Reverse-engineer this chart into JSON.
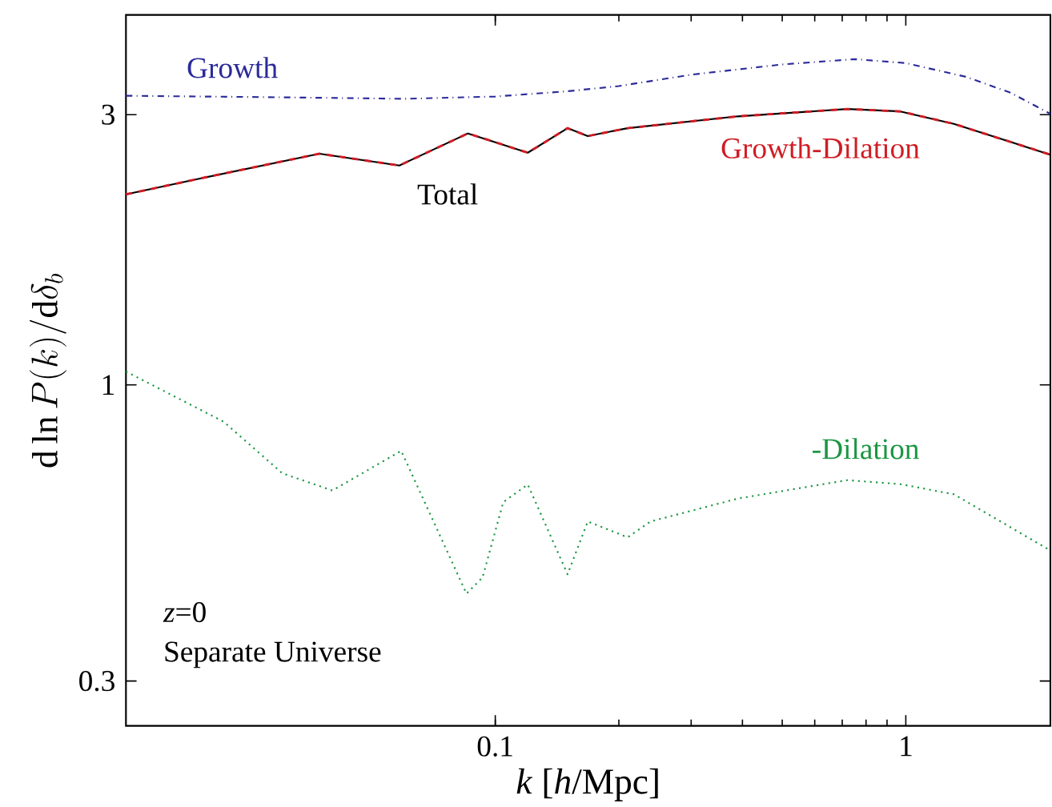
{
  "chart_data": {
    "type": "line",
    "xlabel": "*k* [*h*/Mpc]",
    "ylabel": "\\mathrm{d}\\ln P(k)/\\mathrm{d}\\delta_b",
    "log": "xy",
    "xlim": [
      0.0126,
      2.25
    ],
    "ylim": [
      0.25,
      4.5
    ],
    "xticks": [
      0.1,
      1
    ],
    "yticks": [
      0.3,
      1,
      3
    ],
    "series": [
      {
        "name": "Growth",
        "color": "#2b2b9a",
        "line_style": "dashdot",
        "x": [
          0.0126,
          0.03,
          0.06,
          0.1,
          0.15,
          0.2,
          0.3,
          0.5,
          0.75,
          1.0,
          1.4,
          1.8,
          2.25
        ],
        "values": [
          3.24,
          3.22,
          3.2,
          3.23,
          3.3,
          3.37,
          3.53,
          3.68,
          3.76,
          3.7,
          3.5,
          3.28,
          3.01
        ]
      },
      {
        "name": "Total",
        "color": "#000000",
        "line_style": "solid",
        "x": [
          0.0126,
          0.0194,
          0.0373,
          0.0584,
          0.0858,
          0.12,
          0.15,
          0.168,
          0.21,
          0.39,
          0.72,
          0.97,
          1.31,
          2.25
        ],
        "values": [
          2.17,
          2.32,
          2.56,
          2.44,
          2.78,
          2.57,
          2.84,
          2.75,
          2.84,
          2.98,
          3.07,
          3.04,
          2.89,
          2.55
        ]
      },
      {
        "name": "Growth-Dilation",
        "color": "#d01c24",
        "line_style": "dashed",
        "x": [
          0.0126,
          0.0194,
          0.0373,
          0.0584,
          0.0858,
          0.12,
          0.15,
          0.168,
          0.21,
          0.39,
          0.72,
          0.97,
          1.31,
          2.25
        ],
        "values": [
          2.17,
          2.32,
          2.56,
          2.44,
          2.78,
          2.57,
          2.84,
          2.75,
          2.84,
          2.98,
          3.07,
          3.04,
          2.89,
          2.55
        ]
      },
      {
        "name": "-Dilation",
        "color": "#1a9641",
        "line_style": "dotted",
        "x": [
          0.0126,
          0.0218,
          0.0303,
          0.0401,
          0.059,
          0.0851,
          0.0931,
          0.1046,
          0.12,
          0.15,
          0.168,
          0.21,
          0.239,
          0.39,
          0.72,
          0.97,
          1.31,
          2.25
        ],
        "values": [
          1.056,
          0.861,
          0.698,
          0.651,
          0.765,
          0.428,
          0.457,
          0.621,
          0.667,
          0.463,
          0.574,
          0.538,
          0.574,
          0.63,
          0.679,
          0.668,
          0.641,
          0.51
        ]
      }
    ],
    "annotations": [
      "*z*=0",
      "Separate Universe"
    ]
  }
}
